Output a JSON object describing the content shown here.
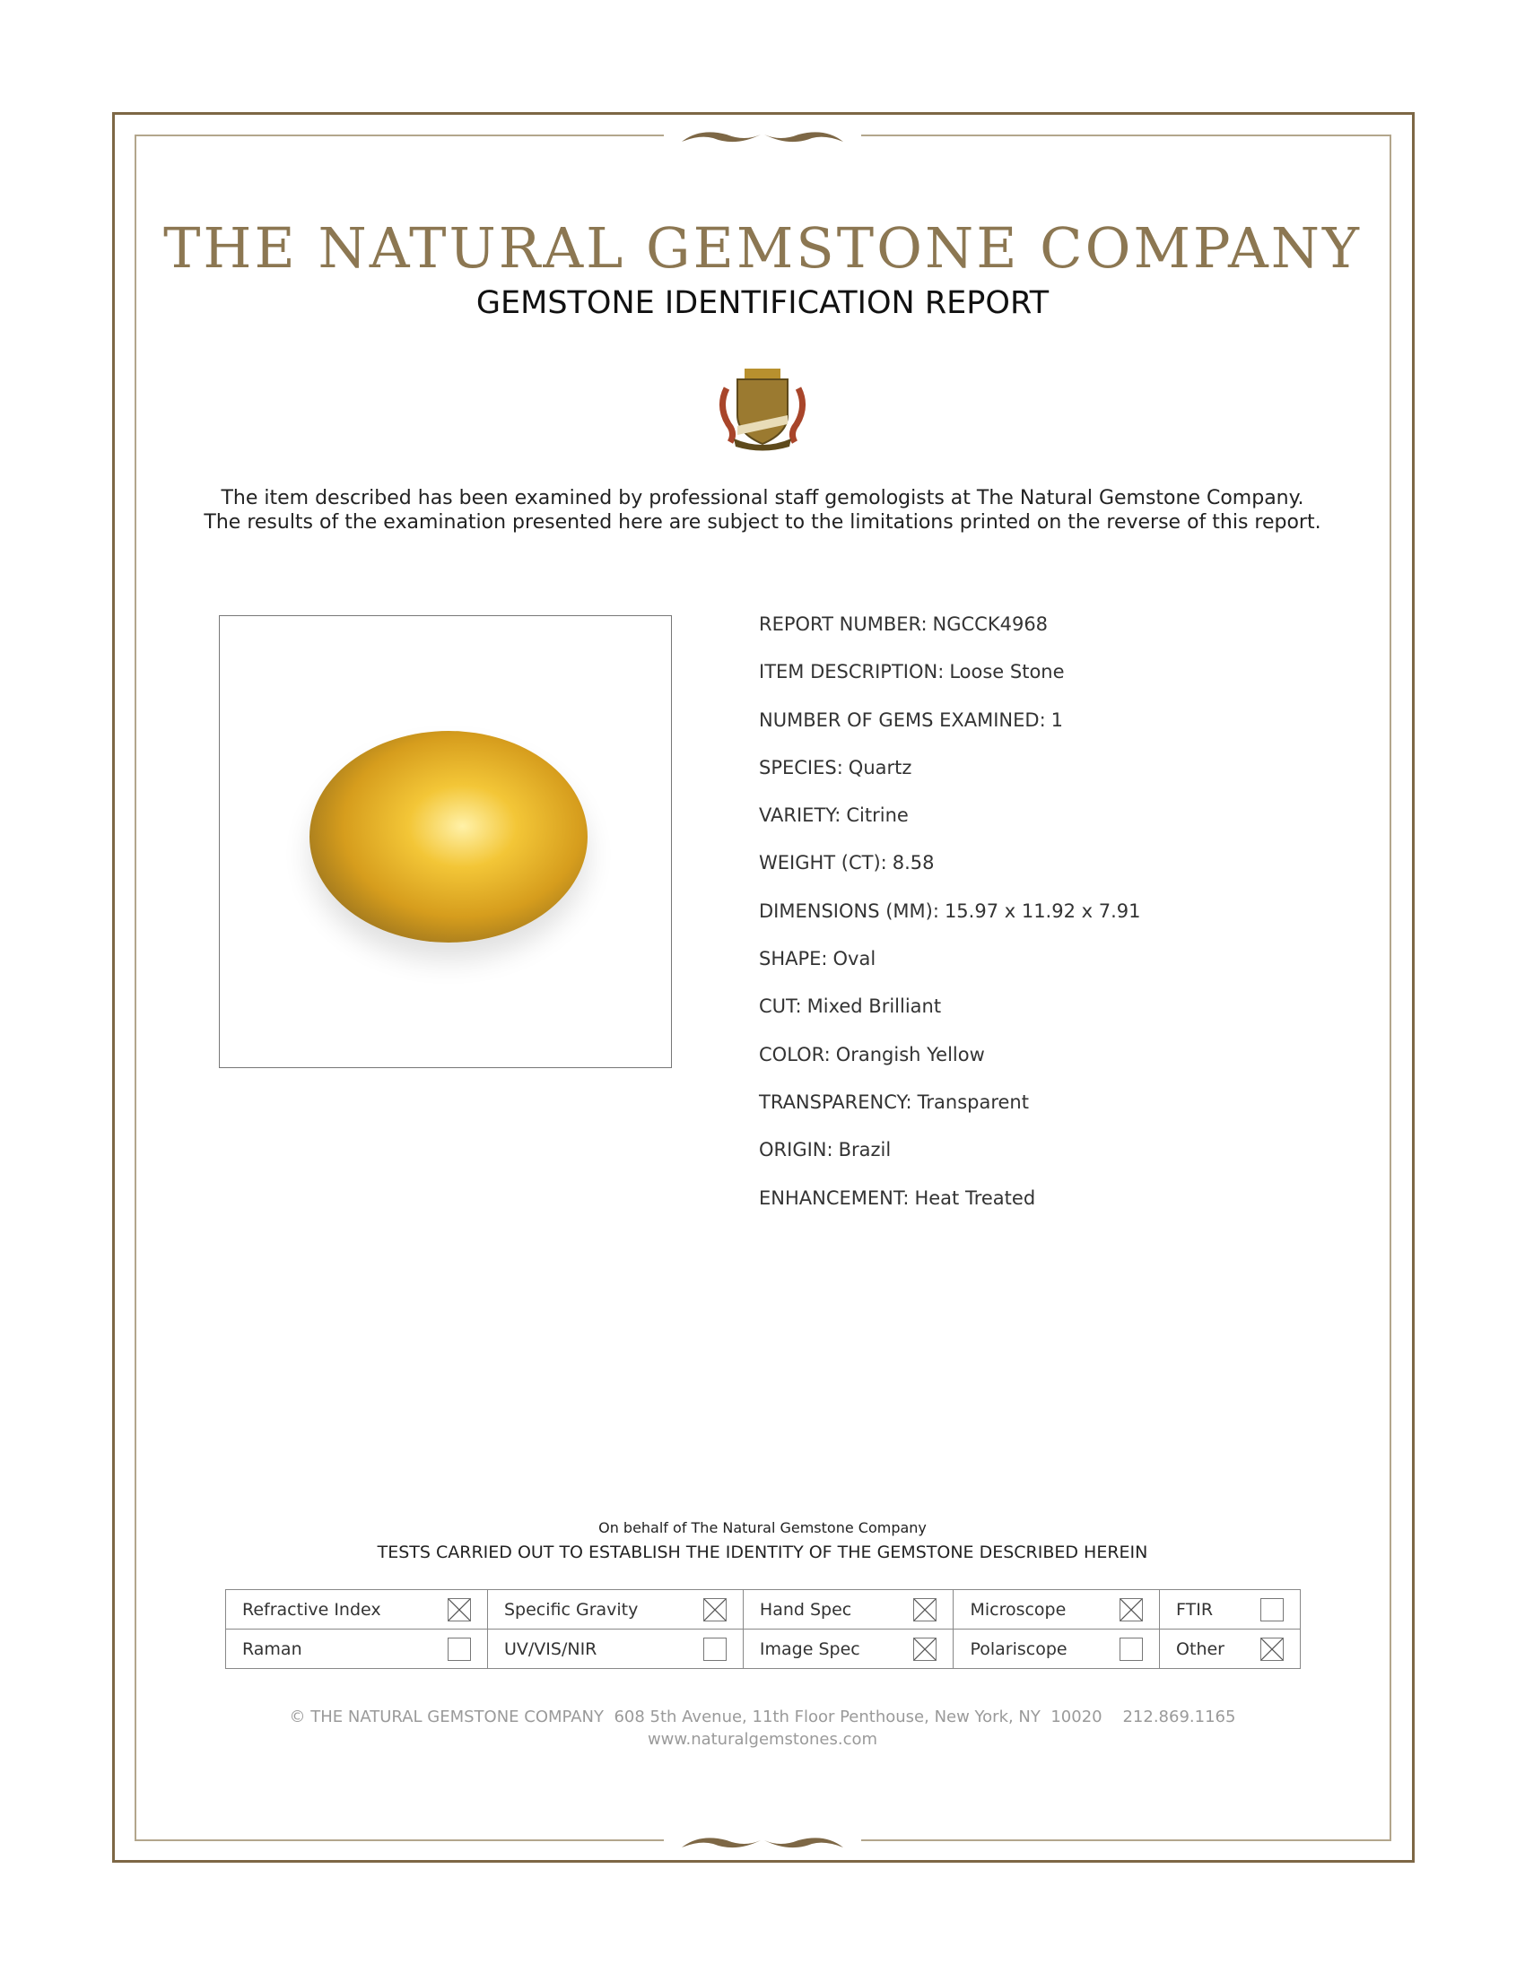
{
  "header": {
    "company": "THE NATURAL GEMSTONE COMPANY",
    "report_title": "GEMSTONE IDENTIFICATION REPORT",
    "intro_line1": "The item described has been examined by professional staff gemologists at The Natural Gemstone Company.",
    "intro_line2": "The results of the examination presented here are subject to the limitations printed on the reverse of this report."
  },
  "colors": {
    "border": "#7d6745",
    "title": "#8c7752",
    "gem": "#e0a92a"
  },
  "fields": [
    {
      "label": "REPORT NUMBER:",
      "value": "NGCCK4968"
    },
    {
      "label": "ITEM DESCRIPTION:",
      "value": "Loose Stone"
    },
    {
      "label": "NUMBER OF GEMS EXAMINED:",
      "value": "1"
    },
    {
      "label": "SPECIES:",
      "value": "Quartz"
    },
    {
      "label": "VARIETY:",
      "value": "Citrine"
    },
    {
      "label": "WEIGHT (CT):",
      "value": "8.58"
    },
    {
      "label": "DIMENSIONS (MM):",
      "value": "15.97 x 11.92 x 7.91"
    },
    {
      "label": "SHAPE:",
      "value": "Oval"
    },
    {
      "label": "CUT:",
      "value": "Mixed Brilliant"
    },
    {
      "label": "COLOR:",
      "value": "Orangish Yellow"
    },
    {
      "label": "TRANSPARENCY:",
      "value": "Transparent"
    },
    {
      "label": "ORIGIN:",
      "value": "Brazil"
    },
    {
      "label": "ENHANCEMENT:",
      "value": "Heat Treated"
    }
  ],
  "tests": {
    "on_behalf": "On behalf of The Natural Gemstone Company",
    "heading": "TESTS CARRIED OUT TO ESTABLISH THE IDENTITY OF THE GEMSTONE DESCRIBED HEREIN",
    "rows": [
      [
        {
          "label": "Refractive Index",
          "checked": true
        },
        {
          "label": "Specific Gravity",
          "checked": true
        },
        {
          "label": "Hand Spec",
          "checked": true
        },
        {
          "label": "Microscope",
          "checked": true
        },
        {
          "label": "FTIR",
          "checked": false
        }
      ],
      [
        {
          "label": "Raman",
          "checked": false
        },
        {
          "label": "UV/VIS/NIR",
          "checked": false
        },
        {
          "label": "Image Spec",
          "checked": true
        },
        {
          "label": "Polariscope",
          "checked": false
        },
        {
          "label": "Other",
          "checked": true
        }
      ]
    ]
  },
  "footer": {
    "address": "© THE NATURAL GEMSTONE COMPANY  608 5th Avenue, 11th Floor Penthouse, New York, NY  10020    212.869.1165",
    "website": "www.naturalgemstones.com"
  }
}
